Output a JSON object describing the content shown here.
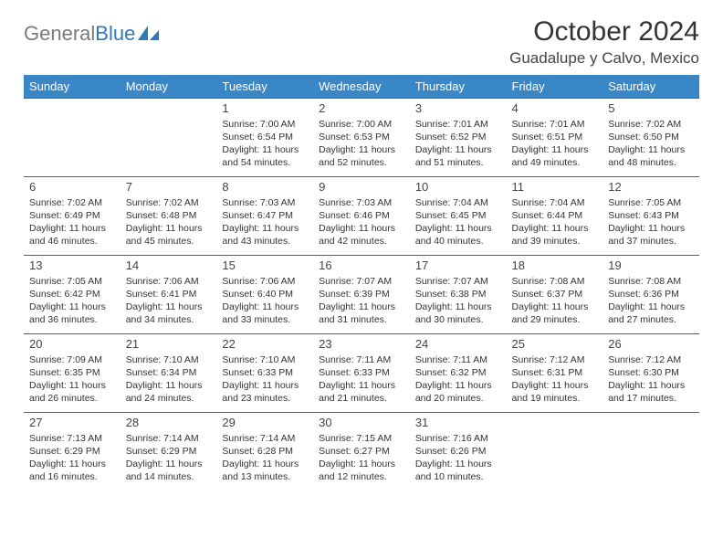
{
  "logo": {
    "text_gray": "General",
    "text_blue": "Blue",
    "fill": "#2f79b9",
    "gray": "#7a7a7a"
  },
  "header": {
    "title": "October 2024",
    "location": "Guadalupe y Calvo, Mexico"
  },
  "style": {
    "header_bg": "#3a87c8",
    "header_fg": "#ffffff",
    "row_border": "#2f6fa0",
    "body_font_size": 10.5,
    "daynum_font_size": 13,
    "title_font_size": 30,
    "location_font_size": 17
  },
  "weekdays": [
    "Sunday",
    "Monday",
    "Tuesday",
    "Wednesday",
    "Thursday",
    "Friday",
    "Saturday"
  ],
  "grid": [
    [
      null,
      null,
      {
        "n": "1",
        "r": "7:00 AM",
        "s": "6:54 PM",
        "d": "11 hours and 54 minutes."
      },
      {
        "n": "2",
        "r": "7:00 AM",
        "s": "6:53 PM",
        "d": "11 hours and 52 minutes."
      },
      {
        "n": "3",
        "r": "7:01 AM",
        "s": "6:52 PM",
        "d": "11 hours and 51 minutes."
      },
      {
        "n": "4",
        "r": "7:01 AM",
        "s": "6:51 PM",
        "d": "11 hours and 49 minutes."
      },
      {
        "n": "5",
        "r": "7:02 AM",
        "s": "6:50 PM",
        "d": "11 hours and 48 minutes."
      }
    ],
    [
      {
        "n": "6",
        "r": "7:02 AM",
        "s": "6:49 PM",
        "d": "11 hours and 46 minutes."
      },
      {
        "n": "7",
        "r": "7:02 AM",
        "s": "6:48 PM",
        "d": "11 hours and 45 minutes."
      },
      {
        "n": "8",
        "r": "7:03 AM",
        "s": "6:47 PM",
        "d": "11 hours and 43 minutes."
      },
      {
        "n": "9",
        "r": "7:03 AM",
        "s": "6:46 PM",
        "d": "11 hours and 42 minutes."
      },
      {
        "n": "10",
        "r": "7:04 AM",
        "s": "6:45 PM",
        "d": "11 hours and 40 minutes."
      },
      {
        "n": "11",
        "r": "7:04 AM",
        "s": "6:44 PM",
        "d": "11 hours and 39 minutes."
      },
      {
        "n": "12",
        "r": "7:05 AM",
        "s": "6:43 PM",
        "d": "11 hours and 37 minutes."
      }
    ],
    [
      {
        "n": "13",
        "r": "7:05 AM",
        "s": "6:42 PM",
        "d": "11 hours and 36 minutes."
      },
      {
        "n": "14",
        "r": "7:06 AM",
        "s": "6:41 PM",
        "d": "11 hours and 34 minutes."
      },
      {
        "n": "15",
        "r": "7:06 AM",
        "s": "6:40 PM",
        "d": "11 hours and 33 minutes."
      },
      {
        "n": "16",
        "r": "7:07 AM",
        "s": "6:39 PM",
        "d": "11 hours and 31 minutes."
      },
      {
        "n": "17",
        "r": "7:07 AM",
        "s": "6:38 PM",
        "d": "11 hours and 30 minutes."
      },
      {
        "n": "18",
        "r": "7:08 AM",
        "s": "6:37 PM",
        "d": "11 hours and 29 minutes."
      },
      {
        "n": "19",
        "r": "7:08 AM",
        "s": "6:36 PM",
        "d": "11 hours and 27 minutes."
      }
    ],
    [
      {
        "n": "20",
        "r": "7:09 AM",
        "s": "6:35 PM",
        "d": "11 hours and 26 minutes."
      },
      {
        "n": "21",
        "r": "7:10 AM",
        "s": "6:34 PM",
        "d": "11 hours and 24 minutes."
      },
      {
        "n": "22",
        "r": "7:10 AM",
        "s": "6:33 PM",
        "d": "11 hours and 23 minutes."
      },
      {
        "n": "23",
        "r": "7:11 AM",
        "s": "6:33 PM",
        "d": "11 hours and 21 minutes."
      },
      {
        "n": "24",
        "r": "7:11 AM",
        "s": "6:32 PM",
        "d": "11 hours and 20 minutes."
      },
      {
        "n": "25",
        "r": "7:12 AM",
        "s": "6:31 PM",
        "d": "11 hours and 19 minutes."
      },
      {
        "n": "26",
        "r": "7:12 AM",
        "s": "6:30 PM",
        "d": "11 hours and 17 minutes."
      }
    ],
    [
      {
        "n": "27",
        "r": "7:13 AM",
        "s": "6:29 PM",
        "d": "11 hours and 16 minutes."
      },
      {
        "n": "28",
        "r": "7:14 AM",
        "s": "6:29 PM",
        "d": "11 hours and 14 minutes."
      },
      {
        "n": "29",
        "r": "7:14 AM",
        "s": "6:28 PM",
        "d": "11 hours and 13 minutes."
      },
      {
        "n": "30",
        "r": "7:15 AM",
        "s": "6:27 PM",
        "d": "11 hours and 12 minutes."
      },
      {
        "n": "31",
        "r": "7:16 AM",
        "s": "6:26 PM",
        "d": "11 hours and 10 minutes."
      },
      null,
      null
    ]
  ],
  "labels": {
    "sunrise": "Sunrise: ",
    "sunset": "Sunset: ",
    "daylight": "Daylight: "
  }
}
